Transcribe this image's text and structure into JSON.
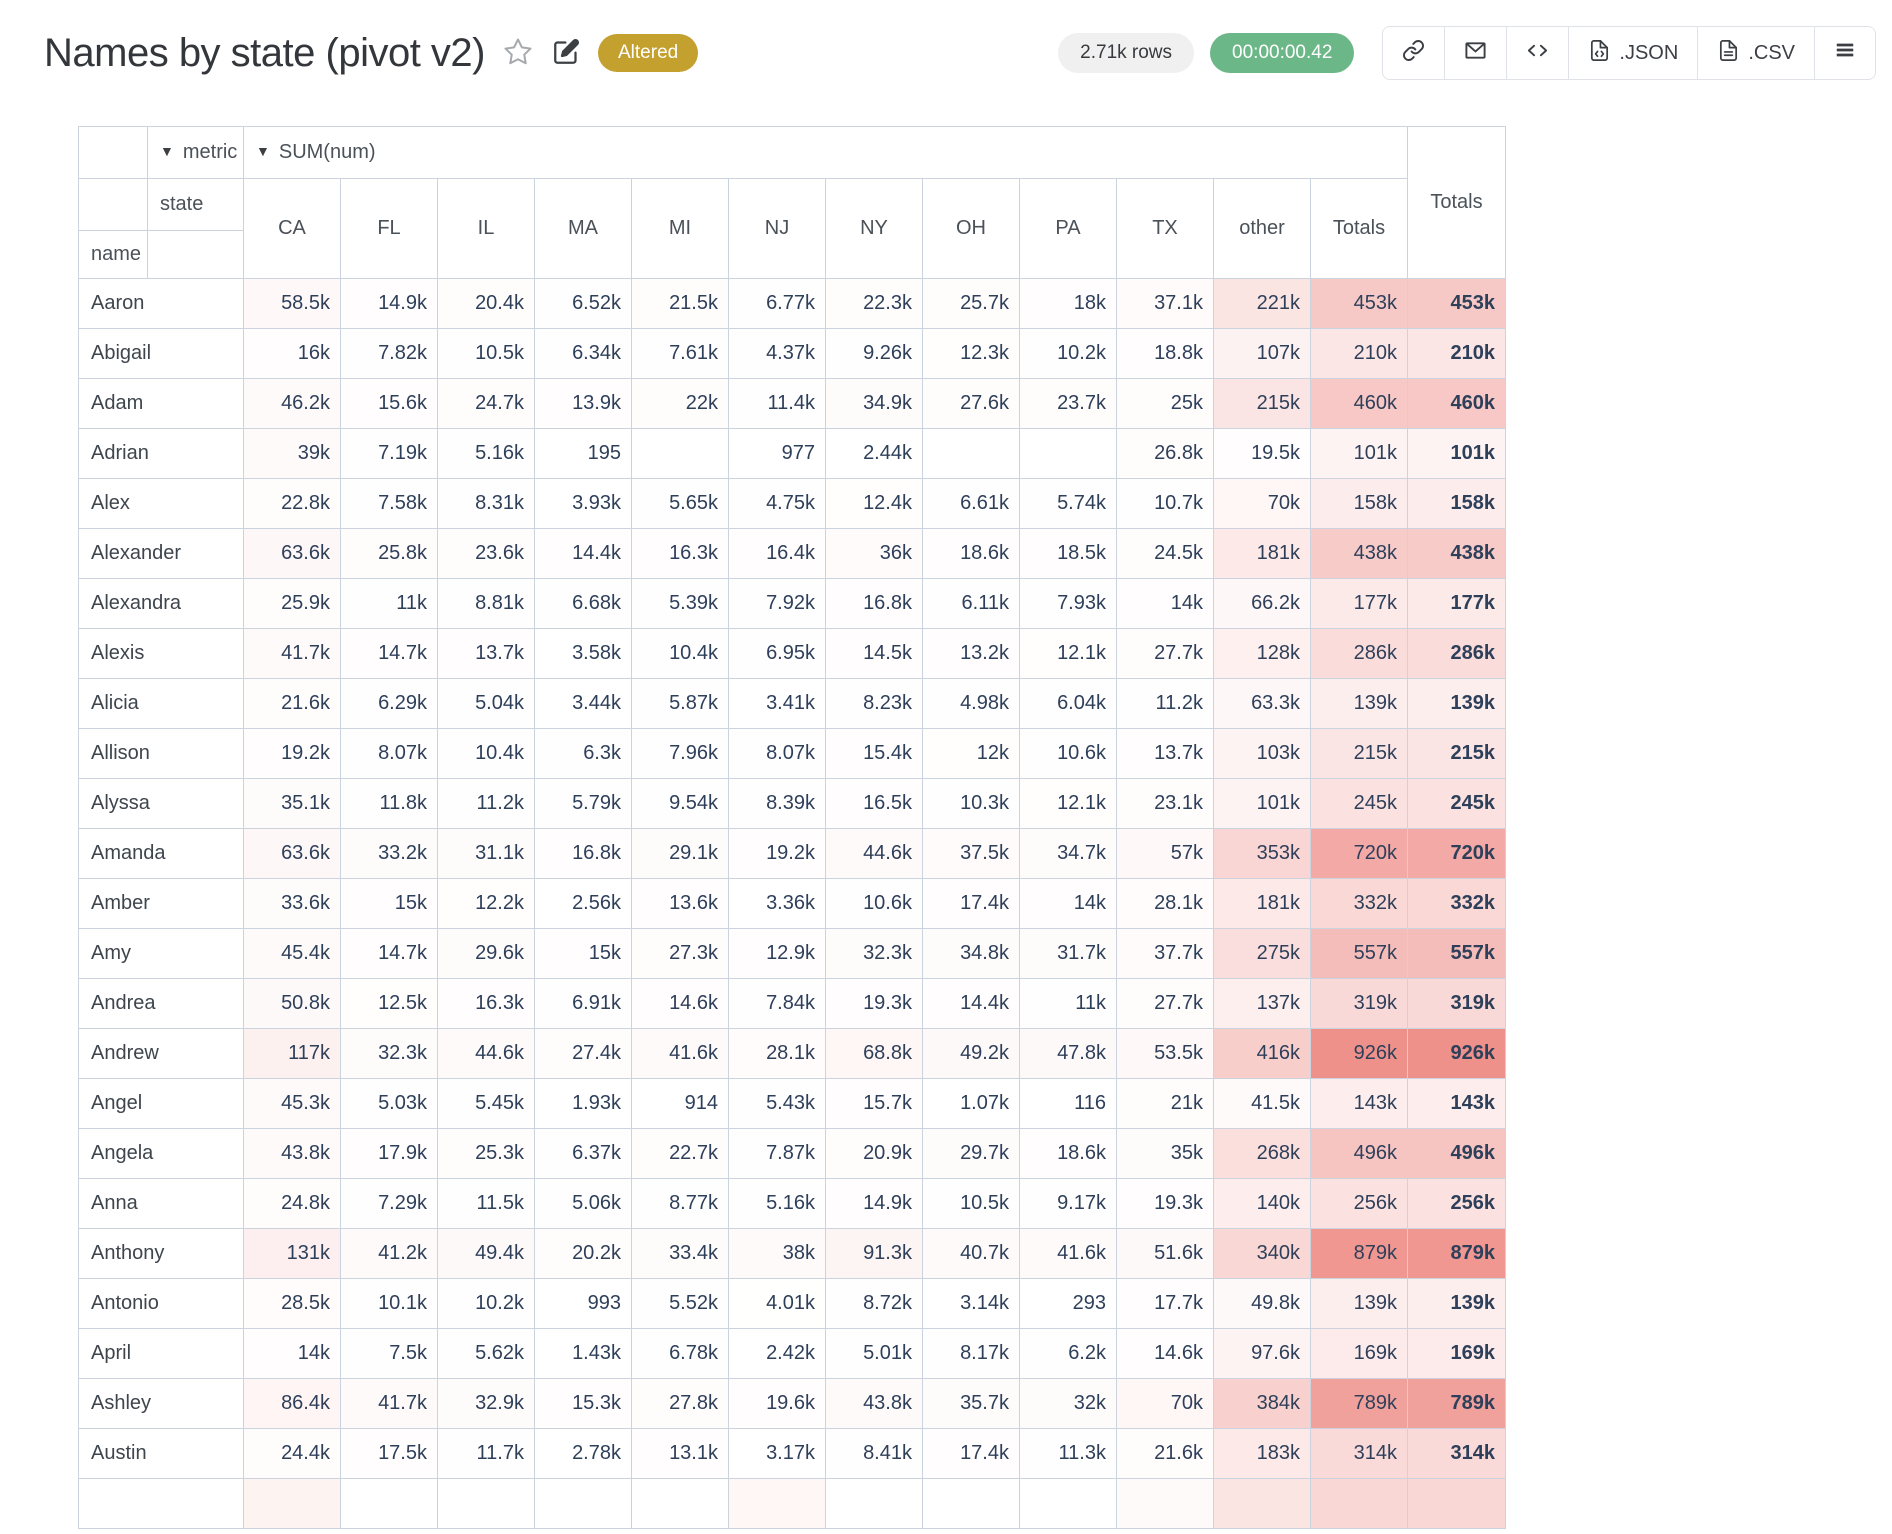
{
  "header": {
    "title": "Names by state (pivot v2)",
    "altered_badge": "Altered",
    "rows_pill": "2.71k rows",
    "timer_pill": "00:00:00.42",
    "link_button": "",
    "email_button": "",
    "embed_button": "",
    "json_button": ".JSON",
    "csv_button": ".CSV"
  },
  "colors": {
    "badge_bg": "#c4a12f",
    "timer_bg": "#6bb787",
    "heat_max_rgb": [
      239,
      145,
      139
    ]
  },
  "pivot": {
    "metric_label": "metric",
    "metric_value": "SUM(num)",
    "col_dim_label": "state",
    "row_dim_label": "name",
    "columns": [
      "CA",
      "FL",
      "IL",
      "MA",
      "MI",
      "NJ",
      "NY",
      "OH",
      "PA",
      "TX",
      "other",
      "Totals"
    ],
    "row_totals_label": "Totals",
    "rows": [
      {
        "name": "Aaron",
        "values": [
          "58.5k",
          "14.9k",
          "20.4k",
          "6.52k",
          "21.5k",
          "6.77k",
          "22.3k",
          "25.7k",
          "18k",
          "37.1k",
          "221k",
          "453k"
        ],
        "total": "453k"
      },
      {
        "name": "Abigail",
        "values": [
          "16k",
          "7.82k",
          "10.5k",
          "6.34k",
          "7.61k",
          "4.37k",
          "9.26k",
          "12.3k",
          "10.2k",
          "18.8k",
          "107k",
          "210k"
        ],
        "total": "210k"
      },
      {
        "name": "Adam",
        "values": [
          "46.2k",
          "15.6k",
          "24.7k",
          "13.9k",
          "22k",
          "11.4k",
          "34.9k",
          "27.6k",
          "23.7k",
          "25k",
          "215k",
          "460k"
        ],
        "total": "460k"
      },
      {
        "name": "Adrian",
        "values": [
          "39k",
          "7.19k",
          "5.16k",
          "195",
          "",
          "977",
          "2.44k",
          "",
          "",
          "26.8k",
          "19.5k",
          "101k"
        ],
        "total": "101k"
      },
      {
        "name": "Alex",
        "values": [
          "22.8k",
          "7.58k",
          "8.31k",
          "3.93k",
          "5.65k",
          "4.75k",
          "12.4k",
          "6.61k",
          "5.74k",
          "10.7k",
          "70k",
          "158k"
        ],
        "total": "158k"
      },
      {
        "name": "Alexander",
        "values": [
          "63.6k",
          "25.8k",
          "23.6k",
          "14.4k",
          "16.3k",
          "16.4k",
          "36k",
          "18.6k",
          "18.5k",
          "24.5k",
          "181k",
          "438k"
        ],
        "total": "438k"
      },
      {
        "name": "Alexandra",
        "values": [
          "25.9k",
          "11k",
          "8.81k",
          "6.68k",
          "5.39k",
          "7.92k",
          "16.8k",
          "6.11k",
          "7.93k",
          "14k",
          "66.2k",
          "177k"
        ],
        "total": "177k"
      },
      {
        "name": "Alexis",
        "values": [
          "41.7k",
          "14.7k",
          "13.7k",
          "3.58k",
          "10.4k",
          "6.95k",
          "14.5k",
          "13.2k",
          "12.1k",
          "27.7k",
          "128k",
          "286k"
        ],
        "total": "286k"
      },
      {
        "name": "Alicia",
        "values": [
          "21.6k",
          "6.29k",
          "5.04k",
          "3.44k",
          "5.87k",
          "3.41k",
          "8.23k",
          "4.98k",
          "6.04k",
          "11.2k",
          "63.3k",
          "139k"
        ],
        "total": "139k"
      },
      {
        "name": "Allison",
        "values": [
          "19.2k",
          "8.07k",
          "10.4k",
          "6.3k",
          "7.96k",
          "8.07k",
          "15.4k",
          "12k",
          "10.6k",
          "13.7k",
          "103k",
          "215k"
        ],
        "total": "215k"
      },
      {
        "name": "Alyssa",
        "values": [
          "35.1k",
          "11.8k",
          "11.2k",
          "5.79k",
          "9.54k",
          "8.39k",
          "16.5k",
          "10.3k",
          "12.1k",
          "23.1k",
          "101k",
          "245k"
        ],
        "total": "245k"
      },
      {
        "name": "Amanda",
        "values": [
          "63.6k",
          "33.2k",
          "31.1k",
          "16.8k",
          "29.1k",
          "19.2k",
          "44.6k",
          "37.5k",
          "34.7k",
          "57k",
          "353k",
          "720k"
        ],
        "total": "720k"
      },
      {
        "name": "Amber",
        "values": [
          "33.6k",
          "15k",
          "12.2k",
          "2.56k",
          "13.6k",
          "3.36k",
          "10.6k",
          "17.4k",
          "14k",
          "28.1k",
          "181k",
          "332k"
        ],
        "total": "332k"
      },
      {
        "name": "Amy",
        "values": [
          "45.4k",
          "14.7k",
          "29.6k",
          "15k",
          "27.3k",
          "12.9k",
          "32.3k",
          "34.8k",
          "31.7k",
          "37.7k",
          "275k",
          "557k"
        ],
        "total": "557k"
      },
      {
        "name": "Andrea",
        "values": [
          "50.8k",
          "12.5k",
          "16.3k",
          "6.91k",
          "14.6k",
          "7.84k",
          "19.3k",
          "14.4k",
          "11k",
          "27.7k",
          "137k",
          "319k"
        ],
        "total": "319k"
      },
      {
        "name": "Andrew",
        "values": [
          "117k",
          "32.3k",
          "44.6k",
          "27.4k",
          "41.6k",
          "28.1k",
          "68.8k",
          "49.2k",
          "47.8k",
          "53.5k",
          "416k",
          "926k"
        ],
        "total": "926k"
      },
      {
        "name": "Angel",
        "values": [
          "45.3k",
          "5.03k",
          "5.45k",
          "1.93k",
          "914",
          "5.43k",
          "15.7k",
          "1.07k",
          "116",
          "21k",
          "41.5k",
          "143k"
        ],
        "total": "143k"
      },
      {
        "name": "Angela",
        "values": [
          "43.8k",
          "17.9k",
          "25.3k",
          "6.37k",
          "22.7k",
          "7.87k",
          "20.9k",
          "29.7k",
          "18.6k",
          "35k",
          "268k",
          "496k"
        ],
        "total": "496k"
      },
      {
        "name": "Anna",
        "values": [
          "24.8k",
          "7.29k",
          "11.5k",
          "5.06k",
          "8.77k",
          "5.16k",
          "14.9k",
          "10.5k",
          "9.17k",
          "19.3k",
          "140k",
          "256k"
        ],
        "total": "256k"
      },
      {
        "name": "Anthony",
        "values": [
          "131k",
          "41.2k",
          "49.4k",
          "20.2k",
          "33.4k",
          "38k",
          "91.3k",
          "40.7k",
          "41.6k",
          "51.6k",
          "340k",
          "879k"
        ],
        "total": "879k"
      },
      {
        "name": "Antonio",
        "values": [
          "28.5k",
          "10.1k",
          "10.2k",
          "993",
          "5.52k",
          "4.01k",
          "8.72k",
          "3.14k",
          "293",
          "17.7k",
          "49.8k",
          "139k"
        ],
        "total": "139k"
      },
      {
        "name": "April",
        "values": [
          "14k",
          "7.5k",
          "5.62k",
          "1.43k",
          "6.78k",
          "2.42k",
          "5.01k",
          "8.17k",
          "6.2k",
          "14.6k",
          "97.6k",
          "169k"
        ],
        "total": "169k"
      },
      {
        "name": "Ashley",
        "values": [
          "86.4k",
          "41.7k",
          "32.9k",
          "15.3k",
          "27.8k",
          "19.6k",
          "43.8k",
          "35.7k",
          "32k",
          "70k",
          "384k",
          "789k"
        ],
        "total": "789k"
      },
      {
        "name": "Austin",
        "values": [
          "24.4k",
          "17.5k",
          "11.7k",
          "2.78k",
          "13.1k",
          "3.17k",
          "8.41k",
          "17.4k",
          "11.3k",
          "21.6k",
          "183k",
          "314k"
        ],
        "total": "314k"
      }
    ],
    "partial_row_bgs": [
      "#ffffff",
      "#fdf4f2",
      "#ffffff",
      "#ffffff",
      "#ffffff",
      "#ffffff",
      "#fef7f6",
      "#ffffff",
      "#ffffff",
      "#ffffff",
      "#fefafa",
      "#fbe5e3",
      "#f9d7d4",
      "#f9d7d4"
    ]
  }
}
